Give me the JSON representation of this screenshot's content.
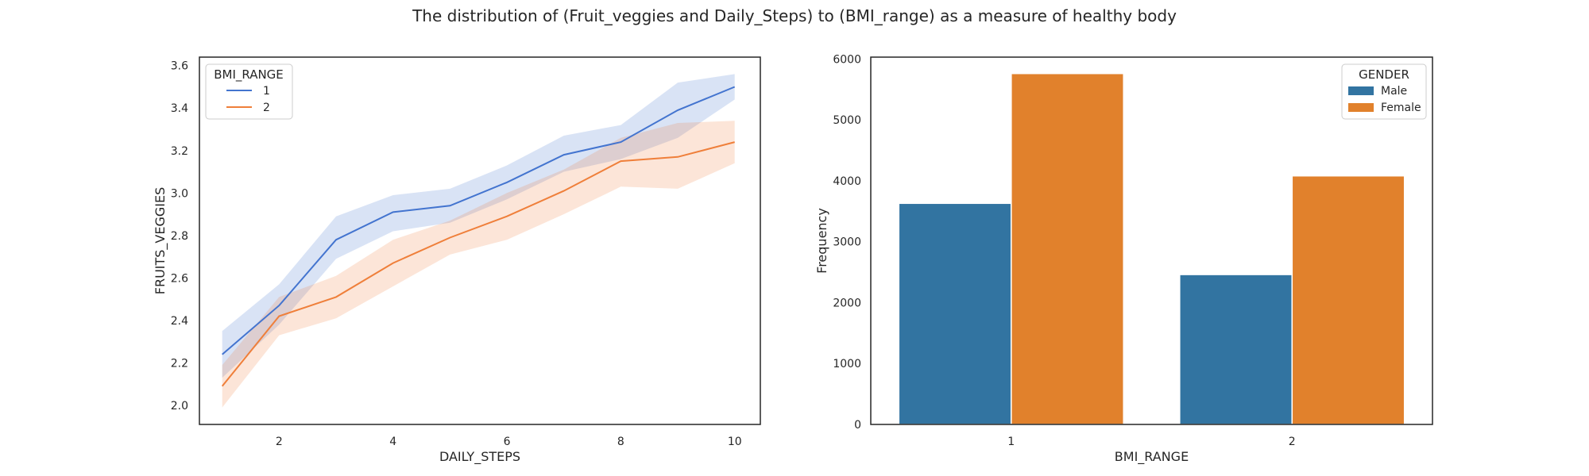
{
  "figure": {
    "title": "The distribution of (Fruit_veggies and Daily_Steps) to (BMI_range) as a measure of healthy body"
  },
  "chart_data": [
    {
      "type": "line",
      "title": "",
      "xlabel": "DAILY_STEPS",
      "ylabel": "FRUITS_VEGGIES",
      "xlim": [
        0.6,
        10.45
      ],
      "ylim": [
        1.91,
        3.64
      ],
      "xticks": [
        2,
        4,
        6,
        8,
        10
      ],
      "yticks": [
        2.0,
        2.2,
        2.4,
        2.6,
        2.8,
        3.0,
        3.2,
        3.4,
        3.6
      ],
      "x": [
        1,
        2,
        3,
        4,
        5,
        6,
        7,
        8,
        9,
        10
      ],
      "legend": {
        "title": "BMI_RANGE",
        "position": "upper left"
      },
      "series": [
        {
          "name": "1",
          "color": "#4374cf",
          "values": [
            2.24,
            2.47,
            2.78,
            2.91,
            2.94,
            3.05,
            3.18,
            3.24,
            3.39,
            3.5
          ],
          "ci_lower": [
            2.13,
            2.38,
            2.69,
            2.82,
            2.86,
            2.97,
            3.1,
            3.16,
            3.26,
            3.44
          ],
          "ci_upper": [
            2.35,
            2.57,
            2.89,
            2.99,
            3.02,
            3.13,
            3.27,
            3.32,
            3.52,
            3.56
          ]
        },
        {
          "name": "2",
          "color": "#ef7f3a",
          "values": [
            2.09,
            2.42,
            2.51,
            2.67,
            2.79,
            2.89,
            3.01,
            3.15,
            3.17,
            3.24
          ],
          "ci_lower": [
            1.99,
            2.33,
            2.41,
            2.56,
            2.71,
            2.78,
            2.9,
            3.03,
            3.02,
            3.14
          ],
          "ci_upper": [
            2.19,
            2.51,
            2.61,
            2.78,
            2.87,
            3.0,
            3.11,
            3.26,
            3.33,
            3.34
          ]
        }
      ]
    },
    {
      "type": "bar",
      "title": "",
      "xlabel": "BMI_RANGE",
      "ylabel": "Frequency",
      "categories": [
        "1",
        "2"
      ],
      "ylim": [
        0,
        6030
      ],
      "yticks": [
        0,
        1000,
        2000,
        3000,
        4000,
        5000,
        6000
      ],
      "legend": {
        "title": "GENDER",
        "position": "upper right"
      },
      "series": [
        {
          "name": "Male",
          "color": "#3274a1",
          "values": [
            3630,
            2460
          ]
        },
        {
          "name": "Female",
          "color": "#e1812c",
          "values": [
            5760,
            4080
          ]
        }
      ]
    }
  ]
}
